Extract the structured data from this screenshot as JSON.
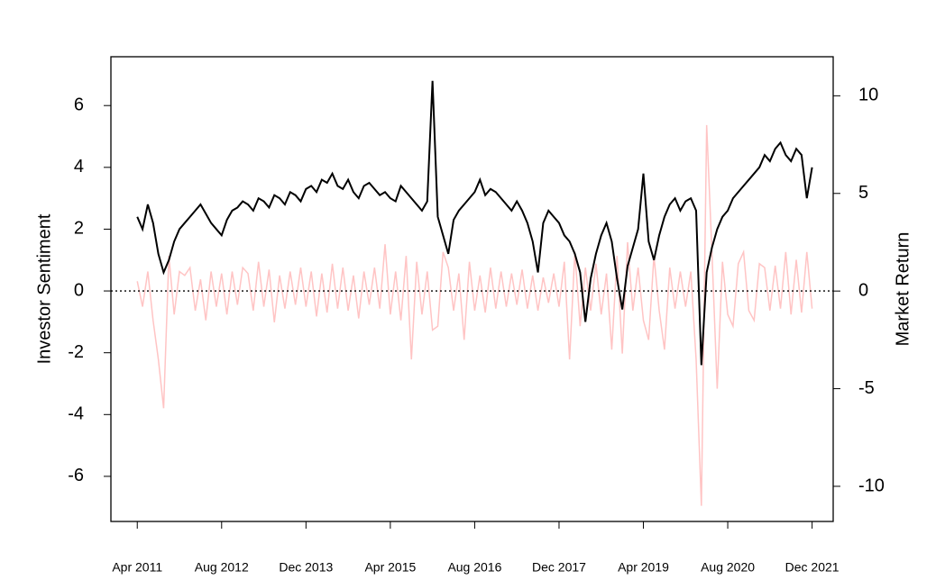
{
  "chart_data": {
    "type": "line",
    "x": [
      "2011-04",
      "2011-05",
      "2011-06",
      "2011-07",
      "2011-08",
      "2011-09",
      "2011-10",
      "2011-11",
      "2011-12",
      "2012-01",
      "2012-02",
      "2012-03",
      "2012-04",
      "2012-05",
      "2012-06",
      "2012-07",
      "2012-08",
      "2012-09",
      "2012-10",
      "2012-11",
      "2012-12",
      "2013-01",
      "2013-02",
      "2013-03",
      "2013-04",
      "2013-05",
      "2013-06",
      "2013-07",
      "2013-08",
      "2013-09",
      "2013-10",
      "2013-11",
      "2013-12",
      "2014-01",
      "2014-02",
      "2014-03",
      "2014-04",
      "2014-05",
      "2014-06",
      "2014-07",
      "2014-08",
      "2014-09",
      "2014-10",
      "2014-11",
      "2014-12",
      "2015-01",
      "2015-02",
      "2015-03",
      "2015-04",
      "2015-05",
      "2015-06",
      "2015-07",
      "2015-08",
      "2015-09",
      "2015-10",
      "2015-11",
      "2015-12",
      "2016-01",
      "2016-02",
      "2016-03",
      "2016-04",
      "2016-05",
      "2016-06",
      "2016-07",
      "2016-08",
      "2016-09",
      "2016-10",
      "2016-11",
      "2016-12",
      "2017-01",
      "2017-02",
      "2017-03",
      "2017-04",
      "2017-05",
      "2017-06",
      "2017-07",
      "2017-08",
      "2017-09",
      "2017-10",
      "2017-11",
      "2017-12",
      "2018-01",
      "2018-02",
      "2018-03",
      "2018-04",
      "2018-05",
      "2018-06",
      "2018-07",
      "2018-08",
      "2018-09",
      "2018-10",
      "2018-11",
      "2018-12",
      "2019-01",
      "2019-02",
      "2019-03",
      "2019-04",
      "2019-05",
      "2019-06",
      "2019-07",
      "2019-08",
      "2019-09",
      "2019-10",
      "2019-11",
      "2019-12",
      "2020-01",
      "2020-02",
      "2020-03",
      "2020-04",
      "2020-05",
      "2020-06",
      "2020-07",
      "2020-08",
      "2020-09",
      "2020-10",
      "2020-11",
      "2020-12",
      "2021-01",
      "2021-02",
      "2021-03",
      "2021-04",
      "2021-05",
      "2021-06",
      "2021-07",
      "2021-08",
      "2021-09",
      "2021-10",
      "2021-11",
      "2021-12"
    ],
    "series": [
      {
        "name": "Market Return",
        "color": "#ffc4c4",
        "axis": "y2",
        "values": [
          0.5,
          -0.8,
          1.0,
          -1.5,
          -3.5,
          -6.0,
          1.8,
          -1.2,
          1.0,
          0.8,
          1.2,
          -1.0,
          0.6,
          -1.5,
          1.0,
          -0.8,
          0.9,
          -1.2,
          1.0,
          -0.7,
          1.2,
          0.9,
          -1.0,
          1.5,
          -0.8,
          1.1,
          -1.6,
          0.8,
          -0.9,
          1.0,
          -0.7,
          1.2,
          -0.8,
          1.0,
          -1.3,
          0.9,
          -1.1,
          1.4,
          -0.9,
          1.2,
          -1.0,
          0.8,
          -1.4,
          1.0,
          -0.7,
          1.2,
          -0.9,
          2.4,
          -1.2,
          1.0,
          -1.5,
          1.8,
          -3.5,
          1.5,
          -1.2,
          1.0,
          -2.0,
          -1.8,
          2.0,
          1.2,
          -1.0,
          0.9,
          -2.5,
          1.5,
          -1.0,
          0.8,
          -1.1,
          1.2,
          -0.9,
          1.0,
          -0.8,
          0.9,
          -0.7,
          1.1,
          -0.9,
          0.8,
          -1.0,
          0.7,
          -0.6,
          0.9,
          -0.8,
          1.5,
          -3.5,
          2.0,
          -1.8,
          1.2,
          -1.0,
          1.4,
          -1.2,
          0.9,
          -3.0,
          1.8,
          -3.2,
          2.5,
          -1.0,
          1.2,
          -1.5,
          -2.5,
          1.8,
          -1.0,
          -3.0,
          1.2,
          -0.9,
          1.0,
          -0.8,
          1.0,
          -3.5,
          -11.0,
          8.5,
          2.0,
          -5.0,
          1.5,
          -1.2,
          -1.8,
          1.4,
          2.0,
          -1.0,
          -1.5,
          1.4,
          1.2,
          -1.0,
          1.3,
          -0.9,
          2.0,
          -1.2,
          1.6,
          -1.1,
          2.0,
          -0.9
        ]
      },
      {
        "name": "Investor Sentiment",
        "color": "#000000",
        "axis": "y",
        "values": [
          2.4,
          2.0,
          2.8,
          2.2,
          1.2,
          0.6,
          1.0,
          1.6,
          2.0,
          2.2,
          2.4,
          2.6,
          2.8,
          2.5,
          2.2,
          2.0,
          1.8,
          2.3,
          2.6,
          2.7,
          2.9,
          2.8,
          2.6,
          3.0,
          2.9,
          2.7,
          3.1,
          3.0,
          2.8,
          3.2,
          3.1,
          2.9,
          3.3,
          3.4,
          3.2,
          3.6,
          3.5,
          3.8,
          3.4,
          3.3,
          3.6,
          3.2,
          3.0,
          3.4,
          3.5,
          3.3,
          3.1,
          3.2,
          3.0,
          2.9,
          3.4,
          3.2,
          3.0,
          2.8,
          2.6,
          2.9,
          6.8,
          2.4,
          1.8,
          1.2,
          2.3,
          2.6,
          2.8,
          3.0,
          3.2,
          3.6,
          3.1,
          3.3,
          3.2,
          3.0,
          2.8,
          2.6,
          2.9,
          2.6,
          2.2,
          1.6,
          0.6,
          2.2,
          2.6,
          2.4,
          2.2,
          1.8,
          1.6,
          1.2,
          0.6,
          -1.0,
          0.4,
          1.2,
          1.8,
          2.2,
          1.6,
          0.4,
          -0.6,
          0.8,
          1.4,
          2.0,
          3.8,
          1.6,
          1.0,
          1.8,
          2.4,
          2.8,
          3.0,
          2.6,
          2.9,
          3.0,
          2.6,
          -2.4,
          0.6,
          1.4,
          2.0,
          2.4,
          2.6,
          3.0,
          3.2,
          3.4,
          3.6,
          3.8,
          4.0,
          4.4,
          4.2,
          4.6,
          4.8,
          4.4,
          4.2,
          4.6,
          4.4,
          3.0,
          4.0
        ]
      }
    ],
    "ylabel": "Investor Sentiment",
    "y2label": "Market Return",
    "xlim": [
      "2010-11",
      "2022-04"
    ],
    "xticks": [
      {
        "value": "2011-04",
        "label": "Apr 2011"
      },
      {
        "value": "2012-08",
        "label": "Aug 2012"
      },
      {
        "value": "2013-12",
        "label": "Dec 2013"
      },
      {
        "value": "2015-04",
        "label": "Apr 2015"
      },
      {
        "value": "2016-08",
        "label": "Aug 2016"
      },
      {
        "value": "2017-12",
        "label": "Dec 2017"
      },
      {
        "value": "2019-04",
        "label": "Apr 2019"
      },
      {
        "value": "2020-08",
        "label": "Aug 2020"
      },
      {
        "value": "2021-12",
        "label": "Dec 2021"
      }
    ],
    "ylim": [
      -7.46,
      7.58
    ],
    "yticks": [
      -6,
      -4,
      -2,
      0,
      2,
      4,
      6
    ],
    "y2lim": [
      -11.8,
      12
    ],
    "y2ticks": [
      -10,
      -5,
      0,
      5,
      10
    ],
    "reference_line": 0
  }
}
